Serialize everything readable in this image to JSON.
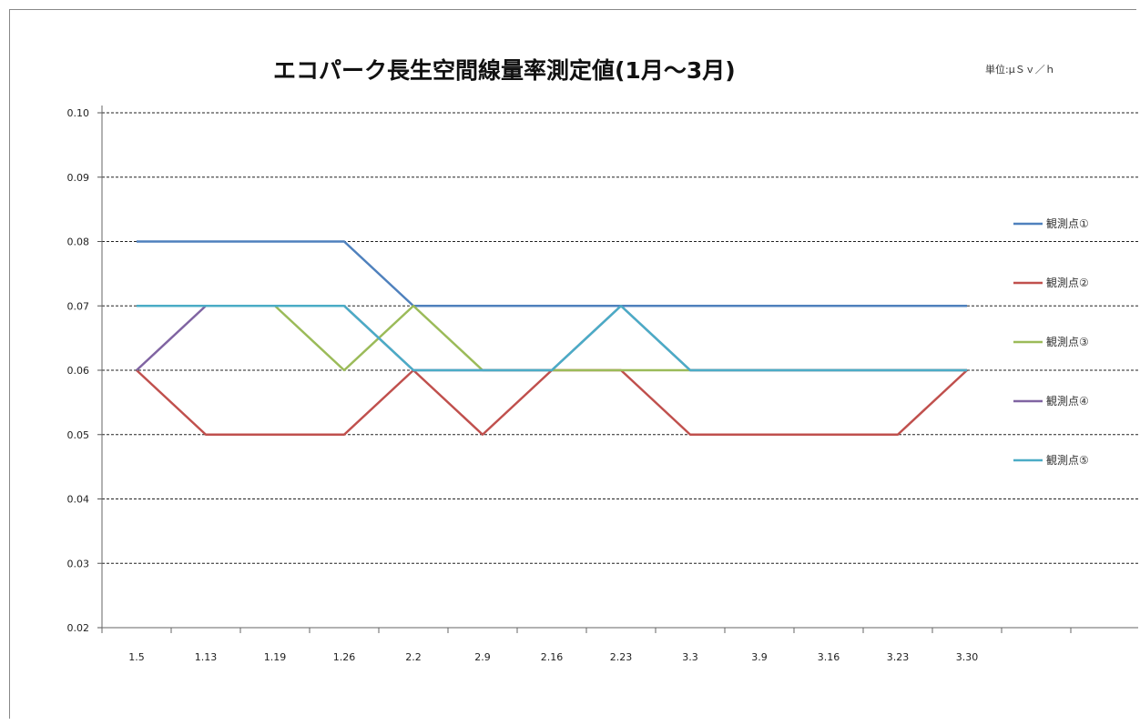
{
  "chart_data": {
    "type": "line",
    "title": "エコパーク長生空間線量率測定値(1月～3月)",
    "unit_label": "単位:μＳｖ／ｈ",
    "categories": [
      "1.5",
      "1.13",
      "1.19",
      "1.26",
      "2.2",
      "2.9",
      "2.16",
      "2.23",
      "3.3",
      "3.9",
      "3.16",
      "3.23",
      "3.30"
    ],
    "ylim": [
      0.02,
      0.1
    ],
    "yticks": [
      "0.02",
      "0.03",
      "0.04",
      "0.05",
      "0.06",
      "0.07",
      "0.08",
      "0.09",
      "0.10"
    ],
    "grid": true,
    "legend_position": "right",
    "series": [
      {
        "name": "観測点①",
        "color": "#4f81bd",
        "values": [
          0.08,
          0.08,
          0.08,
          0.08,
          0.07,
          0.07,
          0.07,
          0.07,
          0.07,
          0.07,
          0.07,
          0.07,
          0.07
        ]
      },
      {
        "name": "観測点②",
        "color": "#c0504d",
        "values": [
          0.06,
          0.05,
          0.05,
          0.05,
          0.06,
          0.05,
          0.06,
          0.06,
          0.05,
          0.05,
          0.05,
          0.05,
          0.06
        ]
      },
      {
        "name": "観測点③",
        "color": "#9bbb59",
        "values": [
          0.07,
          0.07,
          0.07,
          0.06,
          0.07,
          0.06,
          0.06,
          0.06,
          0.06,
          0.06,
          0.06,
          0.06,
          0.06
        ]
      },
      {
        "name": "観測点④",
        "color": "#8064a2",
        "values": [
          0.06,
          0.07,
          0.07,
          0.07,
          0.06,
          0.06,
          0.06,
          0.07,
          0.06,
          0.06,
          0.06,
          0.06,
          0.06
        ]
      },
      {
        "name": "観測点⑤",
        "color": "#4bacc6",
        "values": [
          0.07,
          0.07,
          0.07,
          0.07,
          0.06,
          0.06,
          0.06,
          0.07,
          0.06,
          0.06,
          0.06,
          0.06,
          0.06
        ]
      }
    ]
  }
}
